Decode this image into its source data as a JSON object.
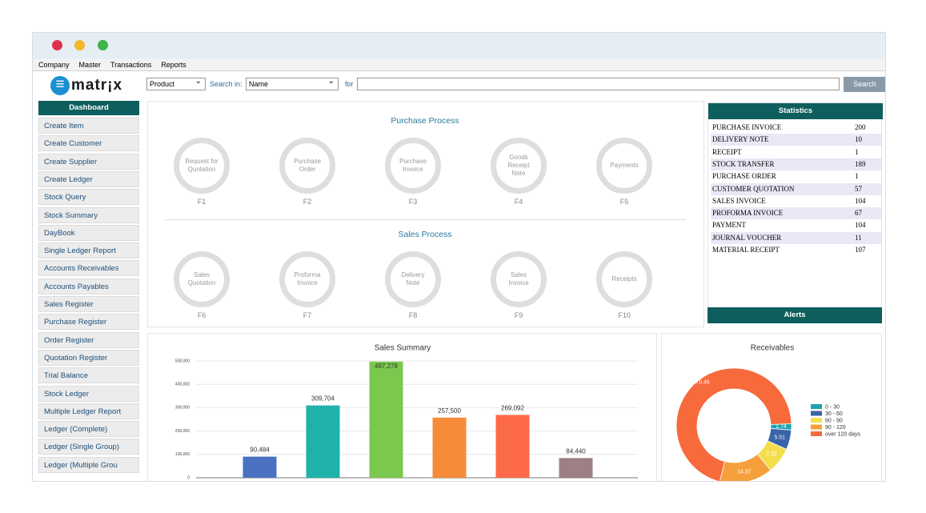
{
  "menu": [
    "Company",
    "Master",
    "Transactions",
    "Reports"
  ],
  "logo": "matr¡x",
  "search": {
    "type_select": "Product",
    "search_in_label": "Search in:",
    "field_select": "Name",
    "for_label": "for",
    "button": "Search"
  },
  "sidebar": {
    "title": "Dashboard",
    "items": [
      "Create Item",
      "Create Customer",
      "Create Supplier",
      "Create Ledger",
      "Stock Query",
      "Stock Summary",
      "DayBook",
      "Single Ledger Report",
      "Accounts Receivables",
      "Accounts Payables",
      "Sales Register",
      "Purchase Register",
      "Order Register",
      "Quotation Register",
      "Trial Balance",
      "Stock Ledger",
      "Multiple Ledger Report",
      "Ledger (Complete)",
      "Ledger (Single Group)",
      "Ledger (Multiple Grou"
    ]
  },
  "purchase_process": {
    "title": "Purchase Process",
    "steps": [
      {
        "label": "Request for Quotation",
        "key": "F1"
      },
      {
        "label": "Purchase Order",
        "key": "F2"
      },
      {
        "label": "Purchase Invoice",
        "key": "F3"
      },
      {
        "label": "Goods Receipt Note",
        "key": "F4"
      },
      {
        "label": "Payments",
        "key": "F5"
      }
    ]
  },
  "sales_process": {
    "title": "Sales Process",
    "steps": [
      {
        "label": "Sales Quotation",
        "key": "F6"
      },
      {
        "label": "Proforma Invoice",
        "key": "F7"
      },
      {
        "label": "Delivery Note",
        "key": "F8"
      },
      {
        "label": "Sales Invoice",
        "key": "F9"
      },
      {
        "label": "Receipts",
        "key": "F10"
      }
    ]
  },
  "statistics": {
    "title": "Statistics",
    "rows": [
      [
        "PURCHASE INVOICE",
        200
      ],
      [
        "DELIVERY NOTE",
        10
      ],
      [
        "RECEIPT",
        1
      ],
      [
        "STOCK TRANSFER",
        189
      ],
      [
        "PURCHASE ORDER",
        1
      ],
      [
        "CUSTOMER QUOTATION",
        57
      ],
      [
        "SALES INVOICE",
        104
      ],
      [
        "PROFORMA INVOICE",
        67
      ],
      [
        "PAYMENT",
        104
      ],
      [
        "JOURNAL VOUCHER",
        11
      ],
      [
        "MATERIAL RECEIPT",
        107
      ]
    ]
  },
  "alerts": {
    "title": "Alerts"
  },
  "chart_data": [
    {
      "type": "bar",
      "title": "Sales Summary",
      "categories": [
        null,
        null,
        null,
        null,
        null,
        null
      ],
      "values": [
        90484,
        309704,
        497278,
        257500,
        269092,
        84440
      ],
      "value_labels": [
        "90,484",
        "309,704",
        "497,278",
        "257,500",
        "269,092",
        "84,440"
      ],
      "colors": [
        "#4a72c0",
        "#20b2aa",
        "#7cc84e",
        "#f68b3a",
        "#fd6a47",
        "#9e7f85"
      ],
      "ylim": [
        0,
        500000
      ],
      "yticks": [
        0,
        {
          "value": 100000,
          "label": "100,000"
        },
        {
          "value": 200000,
          "label": "200,000"
        },
        {
          "value": 300000,
          "label": "300,000"
        },
        {
          "value": 400000,
          "label": "400,000"
        },
        {
          "value": 500000,
          "label": "500,000"
        }
      ],
      "grid": true
    },
    {
      "type": "donut",
      "title": "Receivables",
      "categories": [
        "0 - 30",
        "30 - 60",
        "60 - 90",
        "90 - 120",
        "over 120 days"
      ],
      "values": [
        1.74,
        5.51,
        7.32,
        14.97,
        70.46
      ],
      "colors": [
        "#1fa2b0",
        "#3a64a8",
        "#f3df4c",
        "#f5a03c",
        "#f76a3c"
      ]
    }
  ]
}
